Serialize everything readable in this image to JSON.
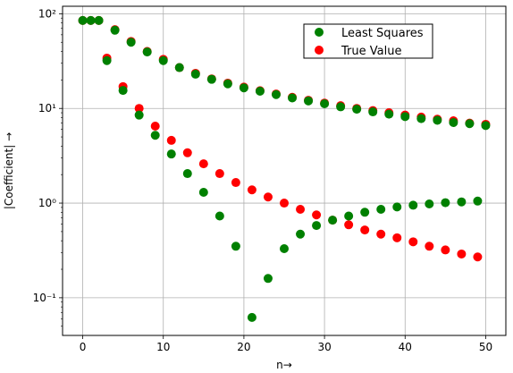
{
  "chart_data": {
    "type": "scatter",
    "title": "",
    "xlabel": "n→",
    "ylabel": "|Coefficient| →",
    "xlim": [
      -2.5,
      52.5
    ],
    "ylim": [
      0.04,
      120
    ],
    "yscale": "log",
    "grid": true,
    "legend_position": "top-right",
    "x_ticks": [
      0,
      10,
      20,
      30,
      40,
      50
    ],
    "x_tick_labels": [
      "0",
      "10",
      "20",
      "30",
      "40",
      "50"
    ],
    "y_ticks": [
      0.1,
      1,
      10,
      100
    ],
    "y_tick_labels": [
      "10⁻¹",
      "10⁰",
      "10¹",
      "10²"
    ],
    "series": [
      {
        "name": "True Value",
        "color": "#ff0000",
        "x": [
          0,
          1,
          2,
          3,
          4,
          5,
          6,
          7,
          8,
          9,
          10,
          11,
          12,
          13,
          14,
          15,
          16,
          17,
          18,
          19,
          20,
          21,
          22,
          23,
          24,
          25,
          26,
          27,
          28,
          29,
          30,
          31,
          32,
          33,
          34,
          35,
          36,
          37,
          38,
          39,
          40,
          41,
          42,
          43,
          44,
          45,
          46,
          47,
          48,
          49,
          50
        ],
        "y": [
          85,
          85,
          85,
          34,
          68,
          17,
          51,
          10,
          40,
          6.5,
          33,
          4.6,
          27,
          3.4,
          23.5,
          2.6,
          20.5,
          2.05,
          18.5,
          1.65,
          16.8,
          1.38,
          15.4,
          1.16,
          14.2,
          1.0,
          13.1,
          0.86,
          12.2,
          0.75,
          11.4,
          0.66,
          10.7,
          0.59,
          10.0,
          0.52,
          9.5,
          0.47,
          9.0,
          0.43,
          8.5,
          0.39,
          8.1,
          0.35,
          7.7,
          0.32,
          7.4,
          0.29,
          7.0,
          0.27,
          6.8
        ]
      },
      {
        "name": "Least Squares",
        "color": "#008000",
        "x": [
          0,
          1,
          2,
          3,
          4,
          5,
          6,
          7,
          8,
          9,
          10,
          11,
          12,
          13,
          14,
          15,
          16,
          17,
          18,
          19,
          20,
          21,
          22,
          23,
          24,
          25,
          26,
          27,
          28,
          29,
          30,
          31,
          32,
          33,
          34,
          35,
          36,
          37,
          38,
          39,
          40,
          41,
          42,
          43,
          44,
          45,
          46,
          47,
          48,
          49,
          50
        ],
        "y": [
          85,
          85,
          85,
          32,
          67,
          15.5,
          50,
          8.5,
          39.5,
          5.2,
          32,
          3.3,
          27,
          2.05,
          23,
          1.3,
          20.3,
          0.73,
          18.2,
          0.35,
          16.5,
          0.062,
          15.2,
          0.16,
          14.0,
          0.33,
          12.9,
          0.47,
          12.0,
          0.58,
          11.2,
          0.66,
          10.4,
          0.73,
          9.8,
          0.8,
          9.2,
          0.86,
          8.7,
          0.91,
          8.2,
          0.95,
          7.8,
          0.98,
          7.5,
          1.01,
          7.1,
          1.03,
          6.9,
          1.05,
          6.6
        ]
      }
    ]
  }
}
